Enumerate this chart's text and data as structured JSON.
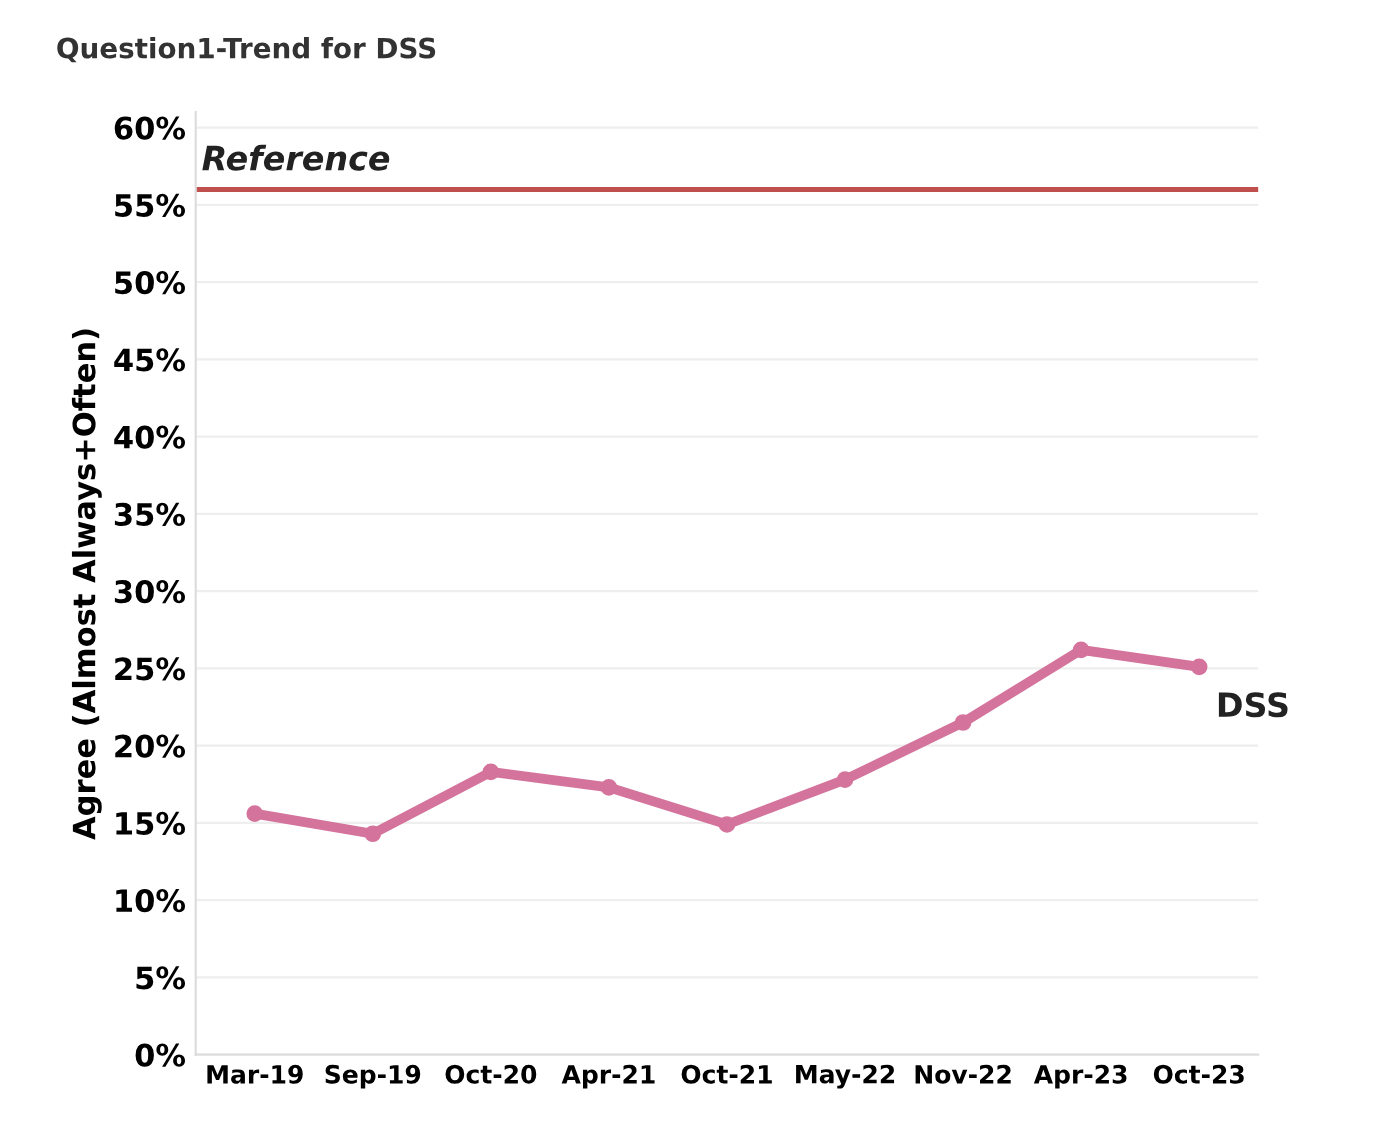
{
  "chart_data": {
    "type": "line",
    "title": "Question1-Trend for DSS",
    "ylabel": "Agree (Almost Always+Often)",
    "categories": [
      "Mar-19",
      "Sep-19",
      "Oct-20",
      "Apr-21",
      "Oct-21",
      "May-22",
      "Nov-22",
      "Apr-23",
      "Oct-23"
    ],
    "series": [
      {
        "name": "DSS",
        "color": "#d4739b",
        "values": [
          15.6,
          14.3,
          18.3,
          17.3,
          14.9,
          17.8,
          21.5,
          26.2,
          25.1
        ]
      }
    ],
    "ylim": [
      0,
      61
    ],
    "yticks": [
      {
        "value": 0,
        "label": "0%"
      },
      {
        "value": 5,
        "label": "5%"
      },
      {
        "value": 10,
        "label": "10%"
      },
      {
        "value": 15,
        "label": "15%"
      },
      {
        "value": 20,
        "label": "20%"
      },
      {
        "value": 25,
        "label": "25%"
      },
      {
        "value": 30,
        "label": "30%"
      },
      {
        "value": 35,
        "label": "35%"
      },
      {
        "value": 40,
        "label": "40%"
      },
      {
        "value": 45,
        "label": "45%"
      },
      {
        "value": 50,
        "label": "50%"
      },
      {
        "value": 55,
        "label": "55%"
      },
      {
        "value": 60,
        "label": "60%"
      }
    ],
    "ref_lines": [
      {
        "axis": "y",
        "value": 56,
        "label": "Reference",
        "color": "#c0504d"
      }
    ],
    "grid": "y",
    "marker": "circle",
    "line_style": "solid"
  }
}
